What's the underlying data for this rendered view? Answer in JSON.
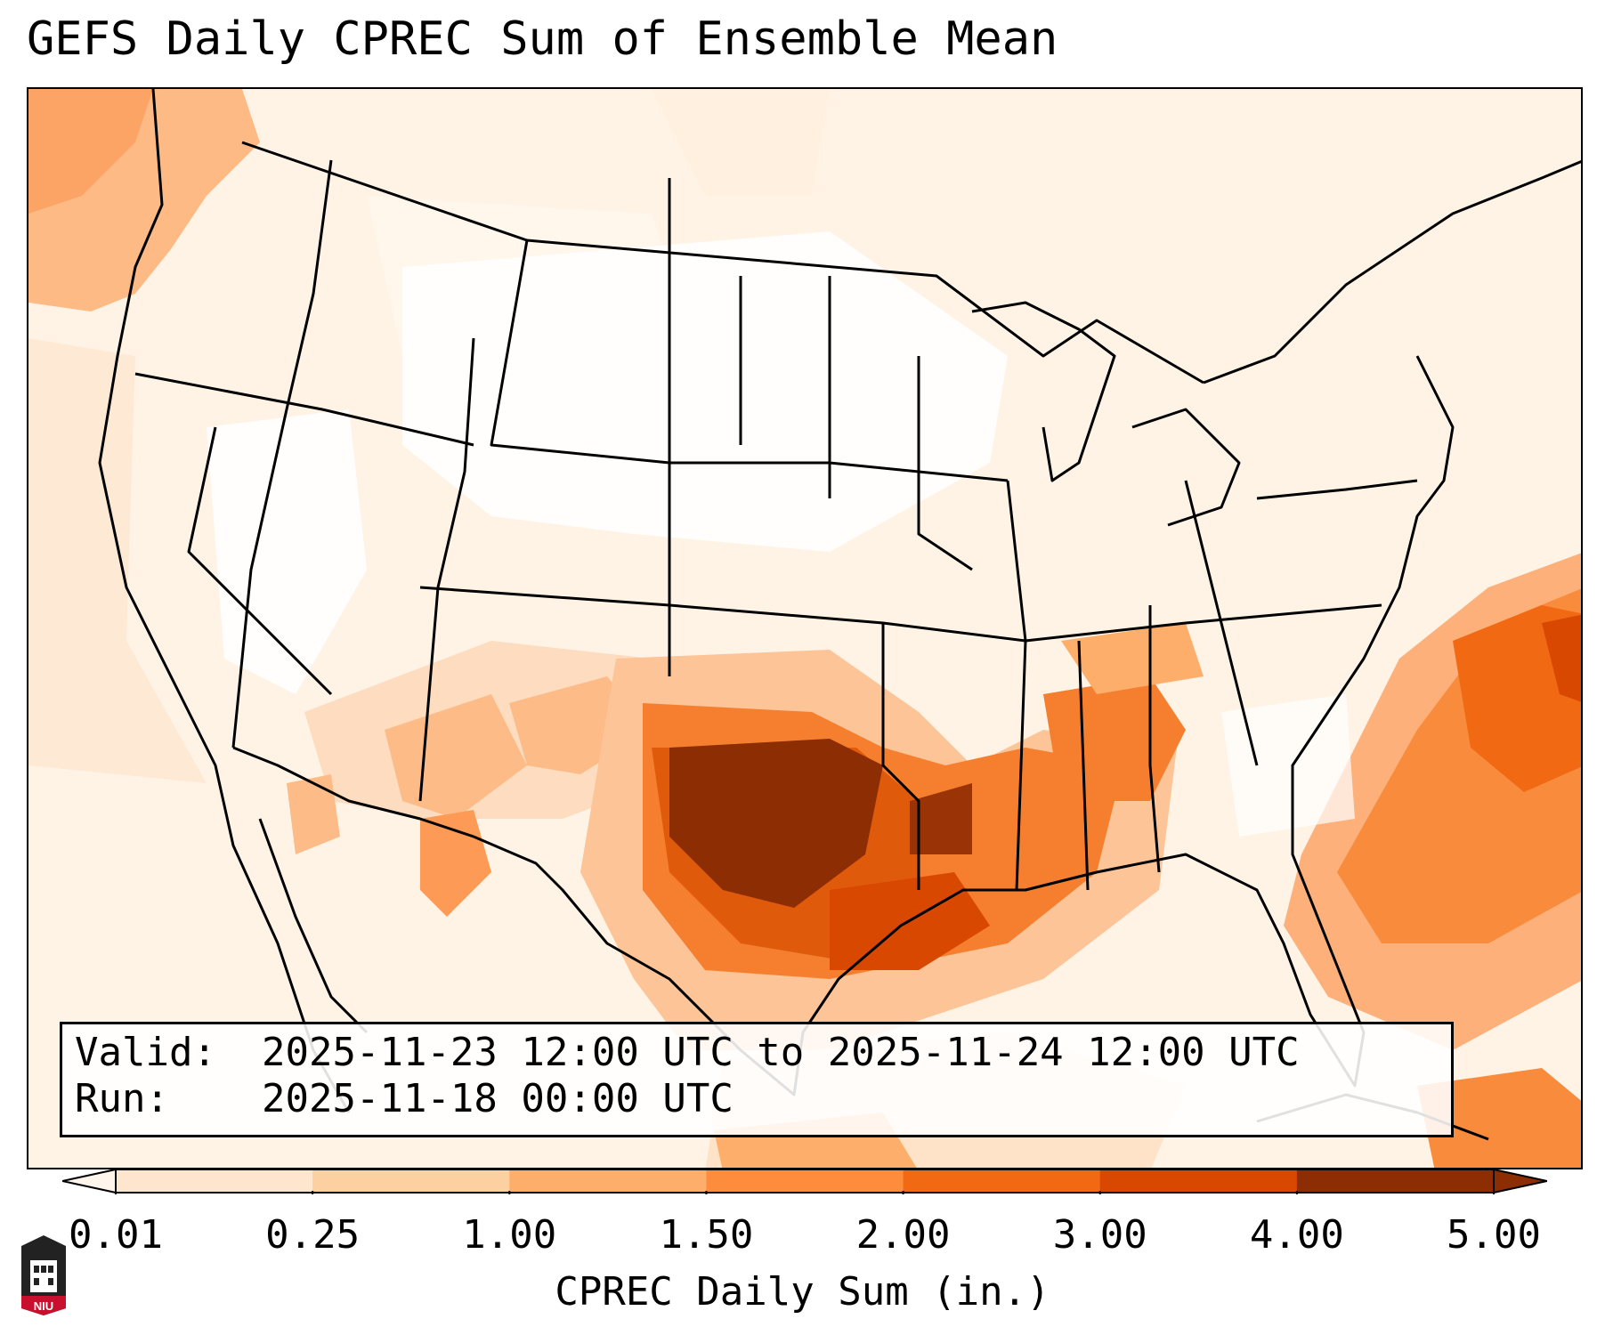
{
  "title": "GEFS Daily CPREC Sum of Ensemble Mean",
  "info": {
    "valid_key": "Valid:",
    "valid_value": "2025-11-23 12:00 UTC to 2025-11-24 12:00 UTC",
    "run_key": "Run:",
    "run_value": "2025-11-18 00:00 UTC"
  },
  "colorbar": {
    "label": "CPREC Daily Sum (in.)",
    "ticks": [
      "0.01",
      "0.25",
      "1.00",
      "1.50",
      "2.00",
      "3.00",
      "4.00",
      "5.00"
    ],
    "colors": [
      "#fff5eb",
      "#fee6ce",
      "#fdd0a2",
      "#fdae6b",
      "#fd8d3c",
      "#f16913",
      "#d94801",
      "#8c2d04"
    ],
    "extend": "both"
  },
  "legend_colors": {
    "light": "#fdebd6",
    "medium": "#fdae6b",
    "orange": "#f16913",
    "dark_orange": "#d94801",
    "brown": "#8c2d04"
  },
  "logo": {
    "text": "NIU",
    "icon": "niu-logo-icon"
  }
}
